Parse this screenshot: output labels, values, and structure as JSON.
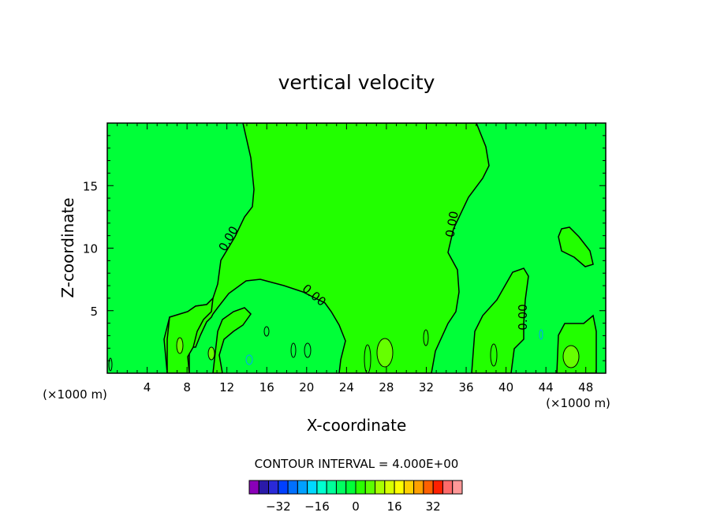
{
  "chart_data": {
    "type": "contour",
    "title": "vertical velocity",
    "xlabel": "X-coordinate",
    "ylabel": "Z-coordinate",
    "x_unit": "(×1000 m)",
    "x_unit_right": "(×1000 m)",
    "xlim": [
      0,
      50
    ],
    "ylim": [
      0,
      20
    ],
    "x_ticks": [
      4,
      8,
      12,
      16,
      20,
      24,
      28,
      32,
      36,
      40,
      44,
      48
    ],
    "y_ticks": [
      5,
      10,
      15
    ],
    "contour_labels": [
      "0.00",
      "0.00",
      "0.00",
      "0.00"
    ],
    "contour_interval_text": "CONTOUR INTERVAL = 4.000E+00",
    "colorbar": {
      "tick_labels": [
        "−32",
        "−16",
        "0",
        "16",
        "32"
      ],
      "tick_values": [
        -32,
        -16,
        0,
        16,
        32
      ],
      "levels": [
        -40,
        -36,
        -32,
        -28,
        -24,
        -20,
        -16,
        -12,
        -8,
        -4,
        0,
        4,
        8,
        12,
        16,
        20,
        24,
        28,
        32,
        36,
        40
      ],
      "colors": [
        "#8a00b8",
        "#2a1aa8",
        "#2a2ad8",
        "#0040ff",
        "#0070ff",
        "#00a0ff",
        "#00d8ff",
        "#00ffd0",
        "#00ff9a",
        "#00ff60",
        "#00ff38",
        "#2aff00",
        "#5cff00",
        "#a8ff00",
        "#d8ff00",
        "#ffff00",
        "#ffd000",
        "#ffa000",
        "#ff6000",
        "#ff2000",
        "#ff6a6a",
        "#ff9898"
      ]
    },
    "colors": {
      "positive_fill": "#22ff00",
      "background_fill": "#00ff38",
      "strong_positive_fill": "#66ff00"
    }
  }
}
